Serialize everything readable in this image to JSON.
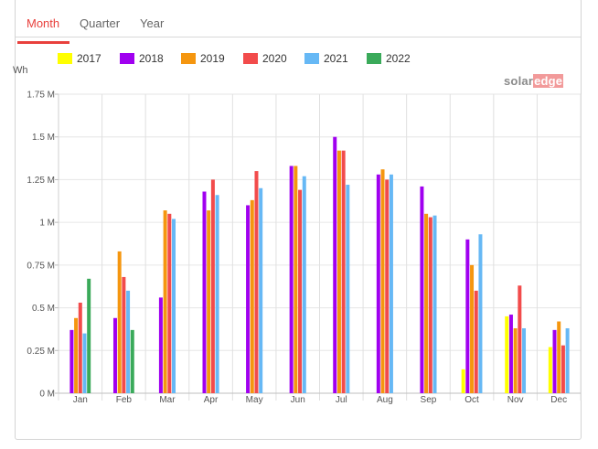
{
  "tabs": [
    {
      "label": "Month",
      "active": true
    },
    {
      "label": "Quarter",
      "active": false
    },
    {
      "label": "Year",
      "active": false
    }
  ],
  "logo": {
    "part1": "solar",
    "part2": "edge"
  },
  "chart_data": {
    "type": "bar",
    "ylabel": "Wh",
    "ylim": [
      0,
      1.75
    ],
    "y_ticks": [
      "0 M",
      "0.25 M",
      "0.5 M",
      "0.75 M",
      "1 M",
      "1.25 M",
      "1.5 M",
      "1.75 M"
    ],
    "y_tick_values": [
      0,
      0.25,
      0.5,
      0.75,
      1,
      1.25,
      1.5,
      1.75
    ],
    "grid": true,
    "legend_position": "top",
    "categories": [
      "Jan",
      "Feb",
      "Mar",
      "Apr",
      "May",
      "Jun",
      "Jul",
      "Aug",
      "Sep",
      "Oct",
      "Nov",
      "Dec"
    ],
    "series": [
      {
        "name": "2017",
        "color": "#ffff00",
        "values": [
          null,
          null,
          null,
          null,
          null,
          null,
          null,
          null,
          null,
          0.14,
          0.45,
          0.27
        ]
      },
      {
        "name": "2018",
        "color": "#a000f0",
        "values": [
          0.37,
          0.44,
          0.56,
          1.18,
          1.1,
          1.33,
          1.5,
          1.28,
          1.21,
          0.9,
          0.46,
          0.37
        ]
      },
      {
        "name": "2019",
        "color": "#f5960f",
        "values": [
          0.44,
          0.83,
          1.07,
          1.07,
          1.13,
          1.33,
          1.42,
          1.31,
          1.05,
          0.75,
          0.38,
          0.42
        ]
      },
      {
        "name": "2020",
        "color": "#f24b4b",
        "values": [
          0.53,
          0.68,
          1.05,
          1.25,
          1.3,
          1.19,
          1.42,
          1.25,
          1.03,
          0.6,
          0.63,
          0.28
        ]
      },
      {
        "name": "2021",
        "color": "#66b8f5",
        "values": [
          0.35,
          0.6,
          1.02,
          1.16,
          1.2,
          1.27,
          1.22,
          1.28,
          1.04,
          0.93,
          0.38,
          0.38
        ]
      },
      {
        "name": "2022",
        "color": "#3aaa5a",
        "values": [
          0.67,
          0.37,
          null,
          null,
          null,
          null,
          null,
          null,
          null,
          null,
          null,
          null
        ]
      }
    ]
  }
}
